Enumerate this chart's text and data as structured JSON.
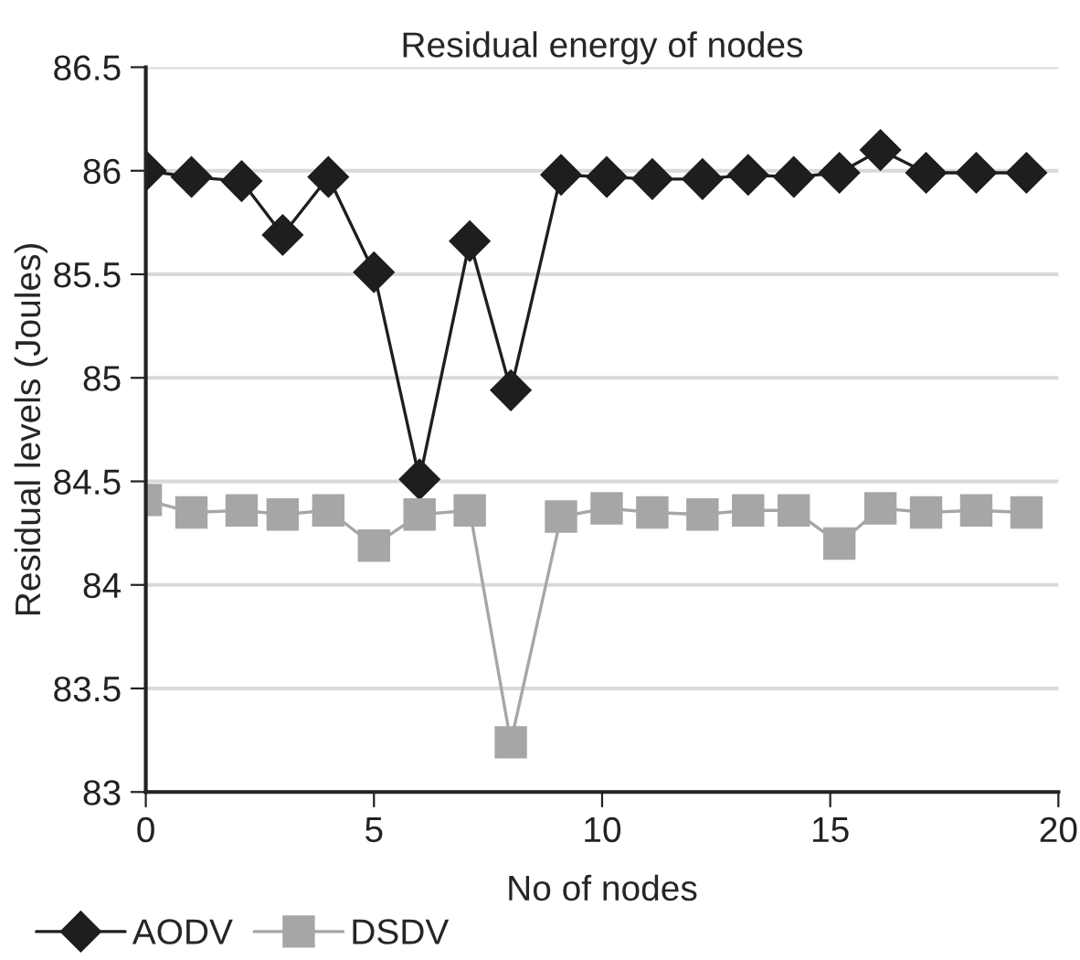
{
  "chart_data": {
    "type": "line",
    "title": "Residual energy of nodes",
    "xlabel": "No of nodes",
    "ylabel": "Residual levels (Joules)",
    "x": [
      0,
      1,
      2.1,
      3,
      4,
      5,
      6,
      7.1,
      8,
      9.1,
      10.1,
      11.1,
      12.2,
      13.2,
      14.2,
      15.2,
      16.1,
      17.1,
      18.2,
      19.3
    ],
    "series": [
      {
        "name": "AODV",
        "color": "#1e1e1e",
        "marker": "diamond",
        "values": [
          86.0,
          85.97,
          85.95,
          85.69,
          85.97,
          85.51,
          84.51,
          85.66,
          84.94,
          85.98,
          85.97,
          85.96,
          85.96,
          85.98,
          85.97,
          85.99,
          86.1,
          85.99,
          85.99,
          85.99
        ]
      },
      {
        "name": "DSDV",
        "color": "#a6a6a8",
        "marker": "square",
        "values": [
          84.41,
          84.35,
          84.36,
          84.34,
          84.36,
          84.19,
          84.34,
          84.36,
          83.24,
          84.33,
          84.37,
          84.35,
          84.34,
          84.36,
          84.36,
          84.2,
          84.37,
          84.35,
          84.36,
          84.35
        ]
      }
    ],
    "xlim": [
      0,
      20
    ],
    "xticks": [
      0,
      5,
      10,
      15,
      20
    ],
    "ylim": [
      83,
      86.5
    ],
    "yticks": [
      83,
      83.5,
      84,
      84.5,
      85,
      85.5,
      86,
      86.5
    ],
    "grid": "y",
    "legend": "bottom left",
    "line_style": "solid"
  }
}
